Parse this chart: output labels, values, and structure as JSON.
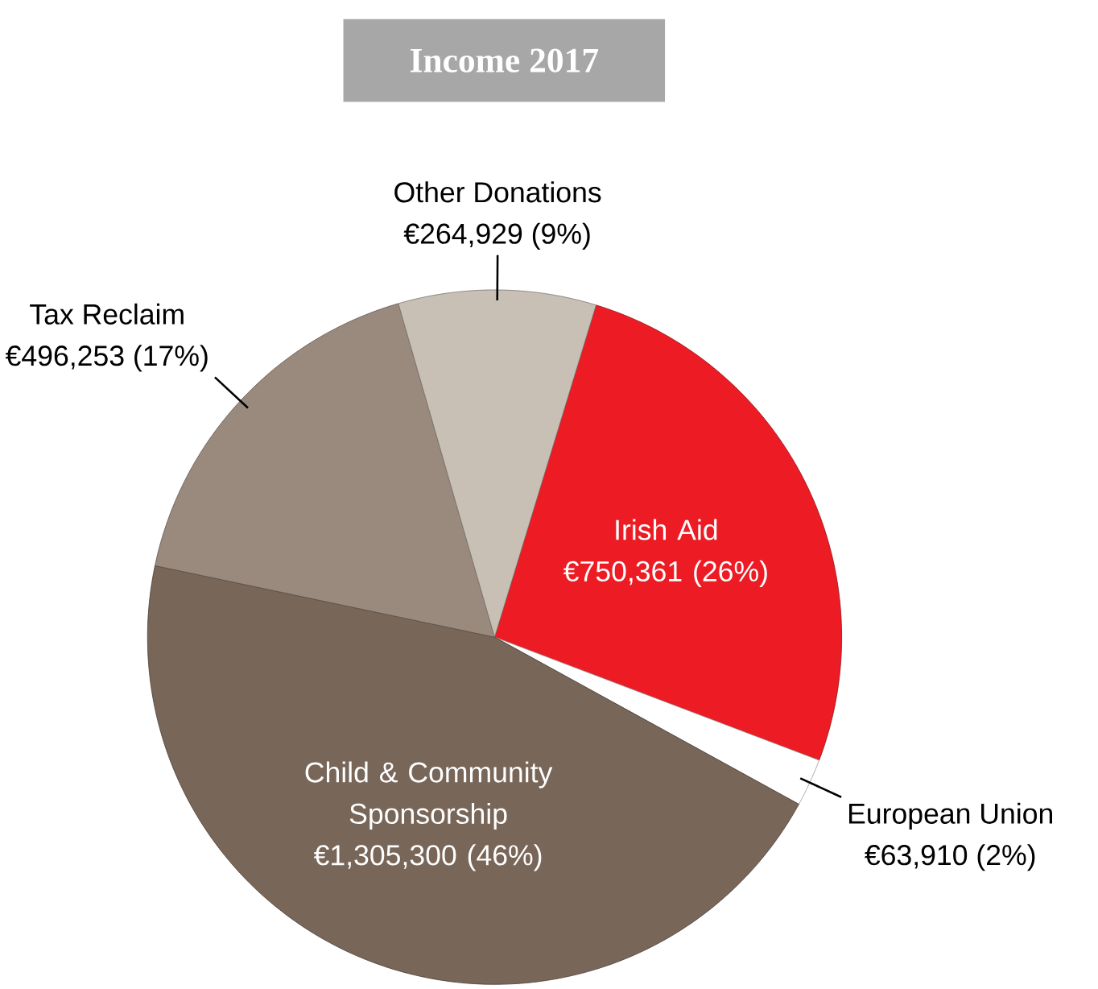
{
  "chart_data": {
    "type": "pie",
    "title": "Income 2017",
    "categories": [
      "Irish Aid",
      "European Union",
      "Child & Community Sponsorship",
      "Tax Reclaim",
      "Other Donations"
    ],
    "values": [
      750361,
      63910,
      1305300,
      496253,
      264929
    ],
    "value_labels": [
      "€750,361 (26%)",
      "€63,910 (2%)",
      "€1,305,300 (46%)",
      "€496,253 (17%)",
      "€264,929 (9%)"
    ],
    "colors": [
      "#ed1c24",
      "#ffffff",
      "#786659",
      "#9a8a7e",
      "#c8c0b5"
    ]
  }
}
